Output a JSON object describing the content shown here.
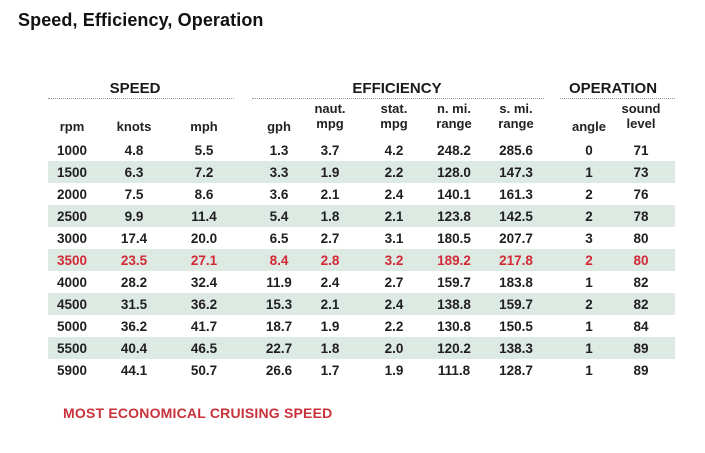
{
  "title": "Speed, Efficiency, Operation",
  "groups": {
    "speed": "SPEED",
    "efficiency": "EFFICIENCY",
    "operation": "OPERATION"
  },
  "columns": [
    {
      "key": "rpm",
      "line1": "",
      "line2": "rpm"
    },
    {
      "key": "knots",
      "line1": "",
      "line2": "knots"
    },
    {
      "key": "mph",
      "line1": "",
      "line2": "mph"
    },
    {
      "key": "gph",
      "line1": "",
      "line2": "gph"
    },
    {
      "key": "naut_mpg",
      "line1": "naut.",
      "line2": "mpg"
    },
    {
      "key": "stat_mpg",
      "line1": "stat.",
      "line2": "mpg"
    },
    {
      "key": "nmi_range",
      "line1": "n. mi.",
      "line2": "range"
    },
    {
      "key": "smi_range",
      "line1": "s. mi.",
      "line2": "range"
    },
    {
      "key": "angle",
      "line1": "",
      "line2": "angle"
    },
    {
      "key": "sound",
      "line1": "sound",
      "line2": "level"
    }
  ],
  "rows": [
    [
      "1000",
      "4.8",
      "5.5",
      "1.3",
      "3.7",
      "4.2",
      "248.2",
      "285.6",
      "0",
      "71"
    ],
    [
      "1500",
      "6.3",
      "7.2",
      "3.3",
      "1.9",
      "2.2",
      "128.0",
      "147.3",
      "1",
      "73"
    ],
    [
      "2000",
      "7.5",
      "8.6",
      "3.6",
      "2.1",
      "2.4",
      "140.1",
      "161.3",
      "2",
      "76"
    ],
    [
      "2500",
      "9.9",
      "11.4",
      "5.4",
      "1.8",
      "2.1",
      "123.8",
      "142.5",
      "2",
      "78"
    ],
    [
      "3000",
      "17.4",
      "20.0",
      "6.5",
      "2.7",
      "3.1",
      "180.5",
      "207.7",
      "3",
      "80"
    ],
    [
      "3500",
      "23.5",
      "27.1",
      "8.4",
      "2.8",
      "3.2",
      "189.2",
      "217.8",
      "2",
      "80"
    ],
    [
      "4000",
      "28.2",
      "32.4",
      "11.9",
      "2.4",
      "2.7",
      "159.7",
      "183.8",
      "1",
      "82"
    ],
    [
      "4500",
      "31.5",
      "36.2",
      "15.3",
      "2.1",
      "2.4",
      "138.8",
      "159.7",
      "2",
      "82"
    ],
    [
      "5000",
      "36.2",
      "41.7",
      "18.7",
      "1.9",
      "2.2",
      "130.8",
      "150.5",
      "1",
      "84"
    ],
    [
      "5500",
      "40.4",
      "46.5",
      "22.7",
      "1.8",
      "2.0",
      "120.2",
      "138.3",
      "1",
      "89"
    ],
    [
      "5900",
      "44.1",
      "50.7",
      "26.6",
      "1.7",
      "1.9",
      "111.8",
      "128.7",
      "1",
      "89"
    ]
  ],
  "highlight_rpm": "3500",
  "footnote": "MOST ECONOMICAL CRUISING SPEED",
  "colors": {
    "highlight": "#d22a35",
    "shade": "#dde9e3",
    "footnote": "#c8323a"
  }
}
